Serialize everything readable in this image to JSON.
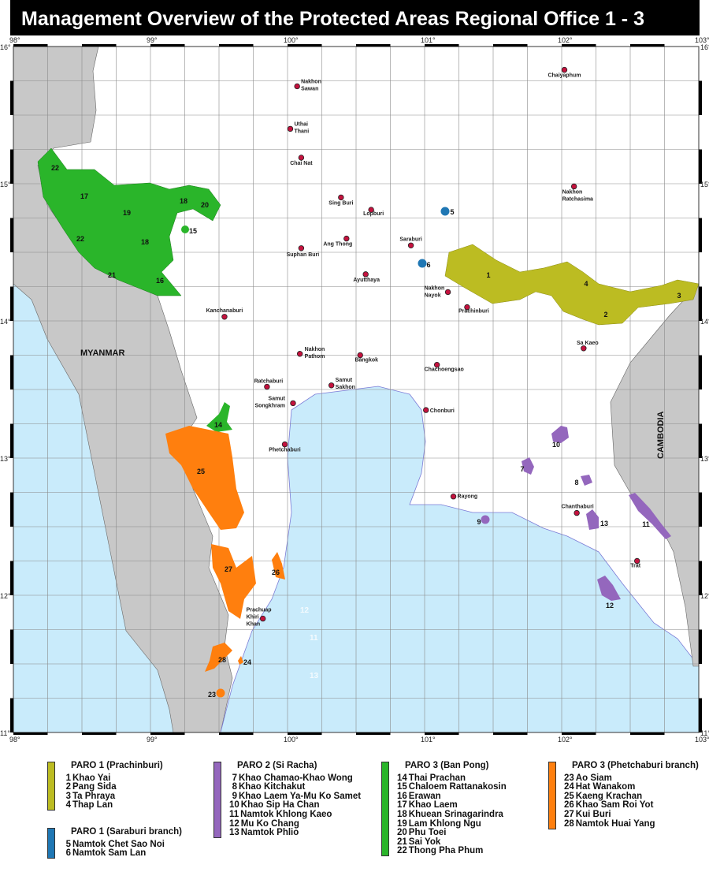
{
  "title": "Management Overview of the Protected Areas Regional Office 1 - 3",
  "map": {
    "projection": "equirectangular",
    "lon_range": [
      98,
      103
    ],
    "lat_range": [
      11,
      16
    ],
    "grid_step_deg": 0.25,
    "lon_ticks": [
      "98°",
      "99°",
      "100°",
      "101°",
      "102°",
      "103°"
    ],
    "lat_ticks": [
      "16°",
      "15°",
      "14°",
      "13°",
      "12°",
      "11°"
    ],
    "colors": {
      "land_foreign": "#c8c8c8",
      "land_thailand": "#ffffff",
      "sea": "#c9ebfb",
      "grid": "#8a8a8a",
      "city_dot": "#c4123e",
      "coast": "#7b7bd6"
    },
    "countries": [
      "MYANMAR",
      "CAMBODIA"
    ],
    "sea_ghost_labels": [
      "12",
      "11",
      "13"
    ],
    "cities": [
      {
        "lines": [
          "Chaiyaphum"
        ],
        "lon": 102.02,
        "lat": 15.83
      },
      {
        "lines": [
          "Nakhon",
          "Sawan"
        ],
        "lon": 100.07,
        "lat": 15.71
      },
      {
        "lines": [
          "Uthai",
          "Thani"
        ],
        "lon": 100.02,
        "lat": 15.4
      },
      {
        "lines": [
          "Chai Nat"
        ],
        "lon": 100.1,
        "lat": 15.19
      },
      {
        "lines": [
          "Sing Buri"
        ],
        "lon": 100.39,
        "lat": 14.9
      },
      {
        "lines": [
          "Lopburi"
        ],
        "lon": 100.61,
        "lat": 14.81
      },
      {
        "lines": [
          "Nakhon",
          "Ratchasima"
        ],
        "lon": 102.09,
        "lat": 14.98
      },
      {
        "lines": [
          "Ang Thong"
        ],
        "lon": 100.43,
        "lat": 14.6
      },
      {
        "lines": [
          "Saraburi"
        ],
        "lon": 100.9,
        "lat": 14.55
      },
      {
        "lines": [
          "Suphan Buri"
        ],
        "lon": 100.1,
        "lat": 14.53
      },
      {
        "lines": [
          "Ayutthaya"
        ],
        "lon": 100.57,
        "lat": 14.34
      },
      {
        "lines": [
          "Nakhon",
          "Nayok"
        ],
        "lon": 101.17,
        "lat": 14.21
      },
      {
        "lines": [
          "Prachinburi"
        ],
        "lon": 101.31,
        "lat": 14.1
      },
      {
        "lines": [
          "Kanchanaburi"
        ],
        "lon": 99.54,
        "lat": 14.03
      },
      {
        "lines": [
          "Sa Kaeo"
        ],
        "lon": 102.16,
        "lat": 13.8
      },
      {
        "lines": [
          "Nakhon",
          "Pathom"
        ],
        "lon": 100.09,
        "lat": 13.76
      },
      {
        "lines": [
          "Bangkok"
        ],
        "lon": 100.53,
        "lat": 13.75
      },
      {
        "lines": [
          "Chachoengsao"
        ],
        "lon": 101.09,
        "lat": 13.68
      },
      {
        "lines": [
          "Ratchaburi"
        ],
        "lon": 99.85,
        "lat": 13.52
      },
      {
        "lines": [
          "Samut",
          "Sakhon"
        ],
        "lon": 100.32,
        "lat": 13.53
      },
      {
        "lines": [
          "Samut",
          "Songkhram"
        ],
        "lon": 100.04,
        "lat": 13.4
      },
      {
        "lines": [
          "Chonburi"
        ],
        "lon": 101.01,
        "lat": 13.35
      },
      {
        "lines": [
          "Phetchaburi"
        ],
        "lon": 99.98,
        "lat": 13.1
      },
      {
        "lines": [
          "Rayong"
        ],
        "lon": 101.21,
        "lat": 12.72
      },
      {
        "lines": [
          "Chanthaburi"
        ],
        "lon": 102.11,
        "lat": 12.6
      },
      {
        "lines": [
          "Trat"
        ],
        "lon": 102.55,
        "lat": 12.25
      },
      {
        "lines": [
          "Prachuap",
          "Khiri",
          "Khan"
        ],
        "lon": 99.82,
        "lat": 11.83
      }
    ]
  },
  "legend": [
    {
      "title": "PARO 1 (Prachinburi)",
      "color": "#bcbc22",
      "items": [
        {
          "num": "1",
          "name": "Khao Yai"
        },
        {
          "num": "2",
          "name": "Pang Sida"
        },
        {
          "num": "3",
          "name": "Ta Phraya"
        },
        {
          "num": "4",
          "name": "Thap Lan"
        }
      ]
    },
    {
      "title": "PARO 1 (Saraburi branch)",
      "color": "#1f77b4",
      "items": [
        {
          "num": "5",
          "name": "Namtok Chet Sao Noi"
        },
        {
          "num": "6",
          "name": "Namtok Sam Lan"
        }
      ]
    },
    {
      "title": "PARO 2 (Si Racha)",
      "color": "#9467bd",
      "items": [
        {
          "num": "7",
          "name": "Khao Chamao-Khao Wong"
        },
        {
          "num": "8",
          "name": "Khao Kitchakut"
        },
        {
          "num": "9",
          "name": "Khao Laem Ya-Mu Ko Samet"
        },
        {
          "num": "10",
          "name": "Khao Sip Ha Chan"
        },
        {
          "num": "11",
          "name": "Namtok Khlong Kaeo"
        },
        {
          "num": "12",
          "name": "Mu Ko Chang"
        },
        {
          "num": "13",
          "name": "Namtok Phlio"
        }
      ]
    },
    {
      "title": "PARO 3 (Ban Pong)",
      "color": "#2ab52a",
      "items": [
        {
          "num": "14",
          "name": "Thai Prachan"
        },
        {
          "num": "15",
          "name": "Chaloem Rattanakosin"
        },
        {
          "num": "16",
          "name": "Erawan"
        },
        {
          "num": "17",
          "name": "Khao Laem"
        },
        {
          "num": "18",
          "name": "Khuean Srinagarindra"
        },
        {
          "num": "19",
          "name": "Lam Khlong Ngu"
        },
        {
          "num": "20",
          "name": "Phu Toei"
        },
        {
          "num": "21",
          "name": "Sai Yok"
        },
        {
          "num": "22",
          "name": "Thong Pha Phum"
        }
      ]
    },
    {
      "title": "PARO 3 (Phetchaburi branch)",
      "color": "#ff7f0e",
      "items": [
        {
          "num": "23",
          "name": "Ao Siam"
        },
        {
          "num": "24",
          "name": "Hat Wanakom"
        },
        {
          "num": "25",
          "name": "Kaeng Krachan"
        },
        {
          "num": "26",
          "name": "Khao Sam Roi Yot"
        },
        {
          "num": "27",
          "name": "Kui Buri"
        },
        {
          "num": "28",
          "name": "Namtok Huai Yang"
        }
      ]
    }
  ]
}
